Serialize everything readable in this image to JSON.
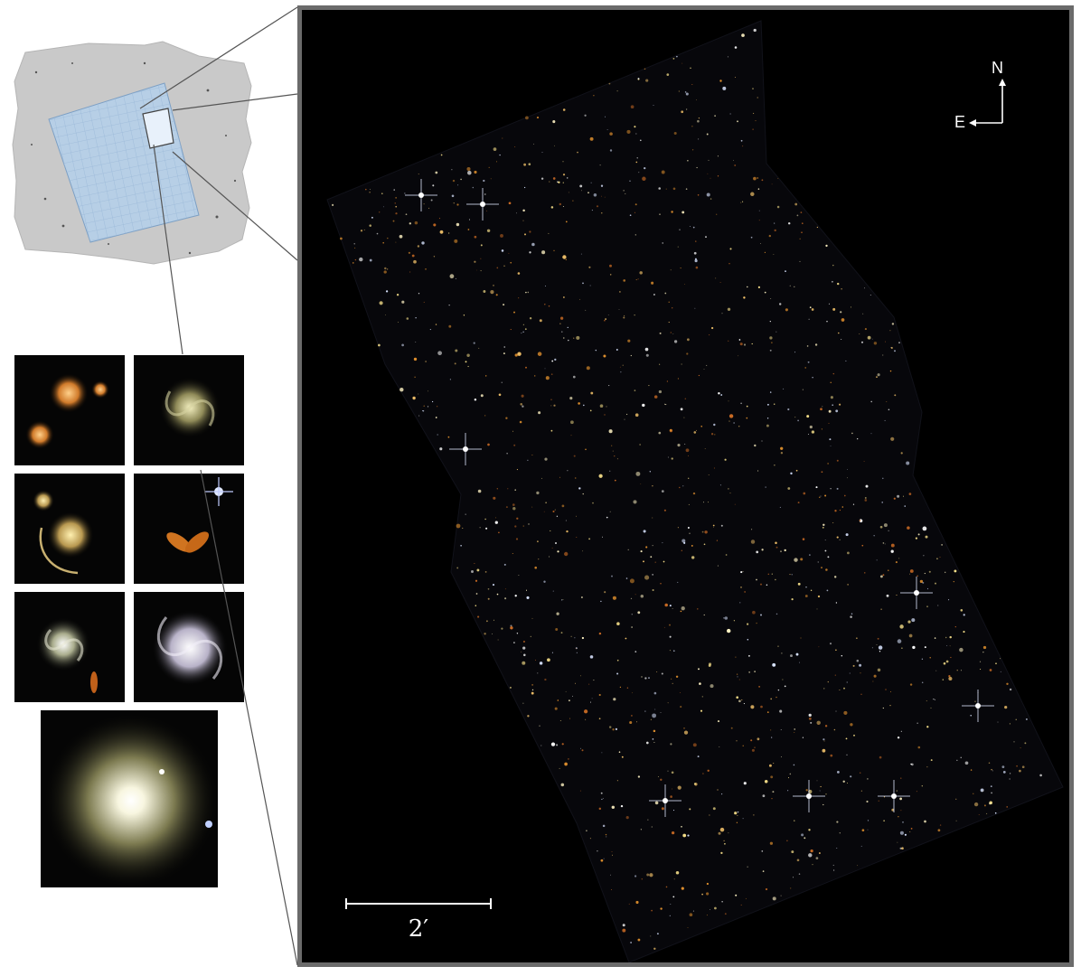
{
  "compass": {
    "north_label": "N",
    "east_label": "E"
  },
  "scale_bar": {
    "label": "2′"
  },
  "colors": {
    "frame_border": "#6b6b6b",
    "overview_field": "#c9c9c9",
    "overview_grid": "#9ab8d8",
    "sky": "#000000"
  },
  "thumbnails": [
    {
      "name": "galaxy-group-thumbnail"
    },
    {
      "name": "face-on-spiral-thumbnail"
    },
    {
      "name": "lensing-cluster-thumbnail"
    },
    {
      "name": "merging-pair-thumbnail"
    },
    {
      "name": "barred-spiral-thumbnail"
    },
    {
      "name": "grand-design-spiral-thumbnail"
    },
    {
      "name": "elliptical-galaxy-thumbnail"
    }
  ]
}
